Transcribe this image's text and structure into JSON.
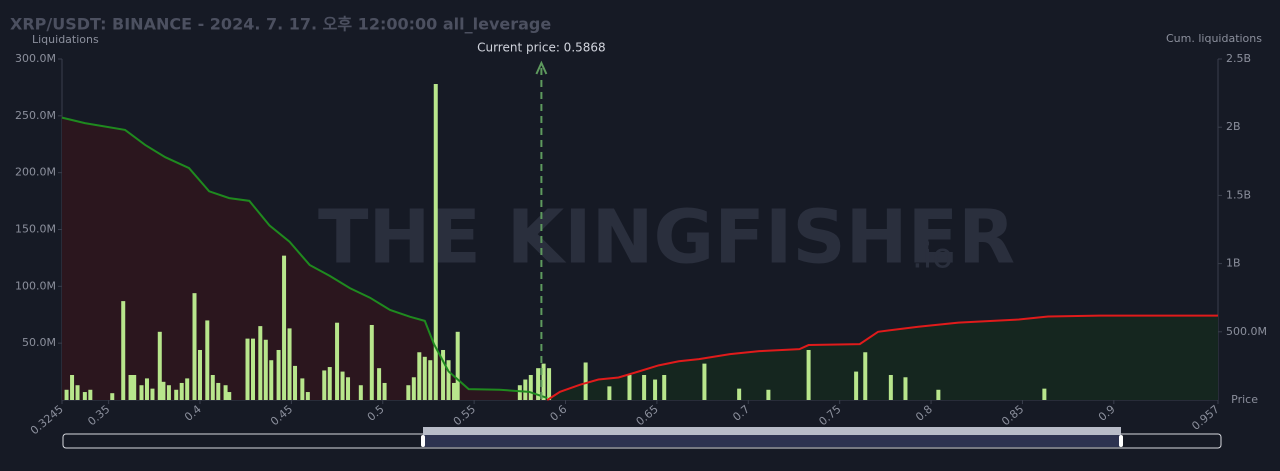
{
  "chart_data": {
    "type": "liquidation",
    "title": "XRP/USDT: BINANCE - 2024. 7. 17. 오후 12:00:00 all_leverage",
    "y_label": "Liquidations",
    "y2_label": "Cum. liquidations",
    "x_label": "Price",
    "watermark": "THE KINGFISHER",
    "watermark_suffix": ".io",
    "current_price": 0.5868,
    "current_price_label": "Current price: 0.5868",
    "xlim": [
      0.3245,
      0.957
    ],
    "xticks": [
      0.3245,
      0.35,
      0.4,
      0.45,
      0.5,
      0.55,
      0.6,
      0.65,
      0.7,
      0.75,
      0.8,
      0.85,
      0.9,
      0.957
    ],
    "ylim": [
      0,
      300000000
    ],
    "yticks": [
      {
        "value": 50000000,
        "label": "50.0M"
      },
      {
        "value": 100000000,
        "label": "100.0M"
      },
      {
        "value": 150000000,
        "label": "150.0M"
      },
      {
        "value": 200000000,
        "label": "200.0M"
      },
      {
        "value": 250000000,
        "label": "250.0M"
      },
      {
        "value": 300000000,
        "label": "300.0M"
      }
    ],
    "y2lim": [
      0,
      2500000000
    ],
    "y2ticks": [
      {
        "value": 500000000,
        "label": "500.0M"
      },
      {
        "value": 1000000000,
        "label": "1B"
      },
      {
        "value": 1500000000,
        "label": "1.5B"
      },
      {
        "value": 2000000000,
        "label": "2B"
      },
      {
        "value": 2500000000,
        "label": "2.5B"
      }
    ],
    "bars": {
      "color": "#b8e68c",
      "x": [
        0.327,
        0.33,
        0.333,
        0.337,
        0.34,
        0.352,
        0.358,
        0.362,
        0.364,
        0.368,
        0.371,
        0.374,
        0.378,
        0.38,
        0.383,
        0.387,
        0.39,
        0.393,
        0.397,
        0.4,
        0.404,
        0.407,
        0.41,
        0.414,
        0.416,
        0.426,
        0.429,
        0.433,
        0.436,
        0.439,
        0.443,
        0.446,
        0.449,
        0.452,
        0.456,
        0.459,
        0.468,
        0.471,
        0.475,
        0.478,
        0.481,
        0.488,
        0.494,
        0.498,
        0.501,
        0.514,
        0.517,
        0.52,
        0.523,
        0.526,
        0.529,
        0.533,
        0.536,
        0.539,
        0.541,
        0.575,
        0.578,
        0.581,
        0.585,
        0.588,
        0.591,
        0.611,
        0.624,
        0.635,
        0.643,
        0.649,
        0.654,
        0.676,
        0.695,
        0.711,
        0.733,
        0.759,
        0.764,
        0.778,
        0.786,
        0.804,
        0.862
      ],
      "values": [
        9000000,
        22000000,
        13000000,
        7000000,
        9000000,
        6000000,
        87000000,
        22000000,
        22000000,
        13000000,
        19000000,
        10000000,
        60000000,
        16000000,
        13000000,
        9000000,
        15000000,
        19000000,
        94000000,
        44000000,
        70000000,
        22000000,
        15000000,
        13000000,
        7000000,
        54000000,
        54000000,
        65000000,
        53000000,
        35000000,
        44000000,
        127000000,
        63000000,
        30000000,
        19000000,
        7000000,
        26000000,
        29000000,
        68000000,
        25000000,
        20000000,
        13000000,
        66000000,
        28000000,
        15000000,
        13000000,
        20000000,
        42000000,
        38000000,
        35000000,
        278000000,
        44000000,
        35000000,
        15000000,
        60000000,
        13000000,
        18000000,
        22000000,
        28000000,
        32000000,
        28000000,
        33000000,
        12000000,
        22000000,
        22000000,
        18000000,
        22000000,
        32000000,
        10000000,
        9000000,
        44000000,
        25000000,
        42000000,
        22000000,
        20000000,
        9000000,
        10000000
      ]
    },
    "cum_left": {
      "color": "#1f8a1f",
      "fill": "#2b161e",
      "x": [
        0.3245,
        0.337,
        0.359,
        0.37,
        0.381,
        0.394,
        0.405,
        0.416,
        0.427,
        0.438,
        0.449,
        0.46,
        0.471,
        0.482,
        0.493,
        0.504,
        0.515,
        0.523,
        0.528,
        0.536,
        0.547,
        0.564,
        0.58,
        0.59
      ],
      "values": [
        2070000000,
        2030000000,
        1980000000,
        1870000000,
        1780000000,
        1700000000,
        1530000000,
        1480000000,
        1460000000,
        1280000000,
        1160000000,
        990000000,
        910000000,
        820000000,
        750000000,
        660000000,
        610000000,
        580000000,
        410000000,
        210000000,
        80000000,
        75000000,
        60000000,
        15000000
      ]
    },
    "cum_right": {
      "color": "#e01b1b",
      "fill": "#15261f",
      "x": [
        0.59,
        0.597,
        0.608,
        0.618,
        0.629,
        0.64,
        0.651,
        0.662,
        0.673,
        0.69,
        0.706,
        0.728,
        0.733,
        0.761,
        0.771,
        0.793,
        0.815,
        0.848,
        0.864,
        0.892,
        0.957
      ],
      "values": [
        0,
        60000000,
        112000000,
        150000000,
        165000000,
        209000000,
        254000000,
        284000000,
        300000000,
        336000000,
        358000000,
        373000000,
        403000000,
        410000000,
        500000000,
        537000000,
        567000000,
        590000000,
        612000000,
        619000000,
        619000000
      ]
    }
  }
}
